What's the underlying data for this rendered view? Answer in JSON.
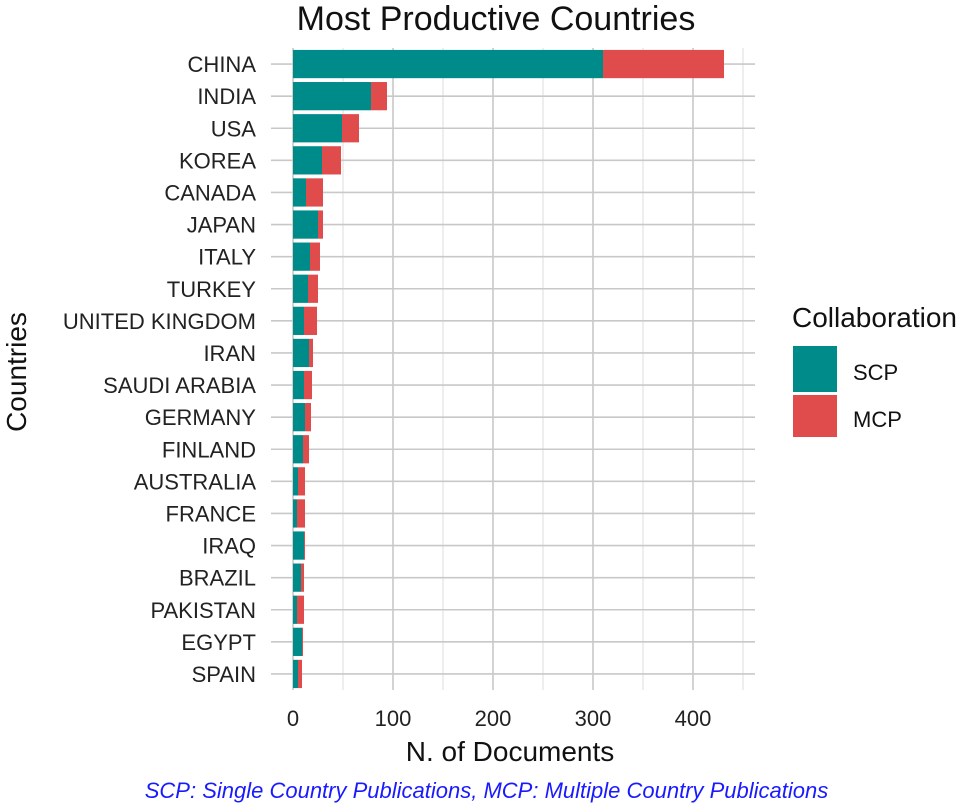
{
  "chart_data": {
    "type": "bar",
    "orientation": "horizontal",
    "stacked": true,
    "title": "Most Productive Countries",
    "xlabel": "N. of Documents",
    "ylabel": "Countries",
    "xlim": [
      0,
      450
    ],
    "xticks": [
      0,
      100,
      200,
      300,
      400
    ],
    "grid": true,
    "categories": [
      "CHINA",
      "INDIA",
      "USA",
      "KOREA",
      "CANADA",
      "JAPAN",
      "ITALY",
      "TURKEY",
      "UNITED KINGDOM",
      "IRAN",
      "SAUDI ARABIA",
      "GERMANY",
      "FINLAND",
      "AUSTRALIA",
      "FRANCE",
      "IRAQ",
      "BRAZIL",
      "PAKISTAN",
      "EGYPT",
      "SPAIN"
    ],
    "series": [
      {
        "name": "SCP",
        "color": "#008b8b",
        "values": [
          310,
          78,
          49,
          29,
          13,
          25,
          17,
          15,
          11,
          16,
          11,
          12,
          10,
          5,
          4,
          11,
          8,
          4,
          9,
          5
        ]
      },
      {
        "name": "MCP",
        "color": "#e04b4b",
        "values": [
          121,
          16,
          17,
          19,
          17,
          5,
          10,
          10,
          13,
          4,
          8,
          6,
          6,
          7,
          8,
          1,
          3,
          7,
          1,
          4
        ]
      }
    ],
    "legend": {
      "title": "Collaboration",
      "position": "right"
    }
  },
  "caption": "SCP: Single Country Publications, MCP: Multiple Country Publications"
}
